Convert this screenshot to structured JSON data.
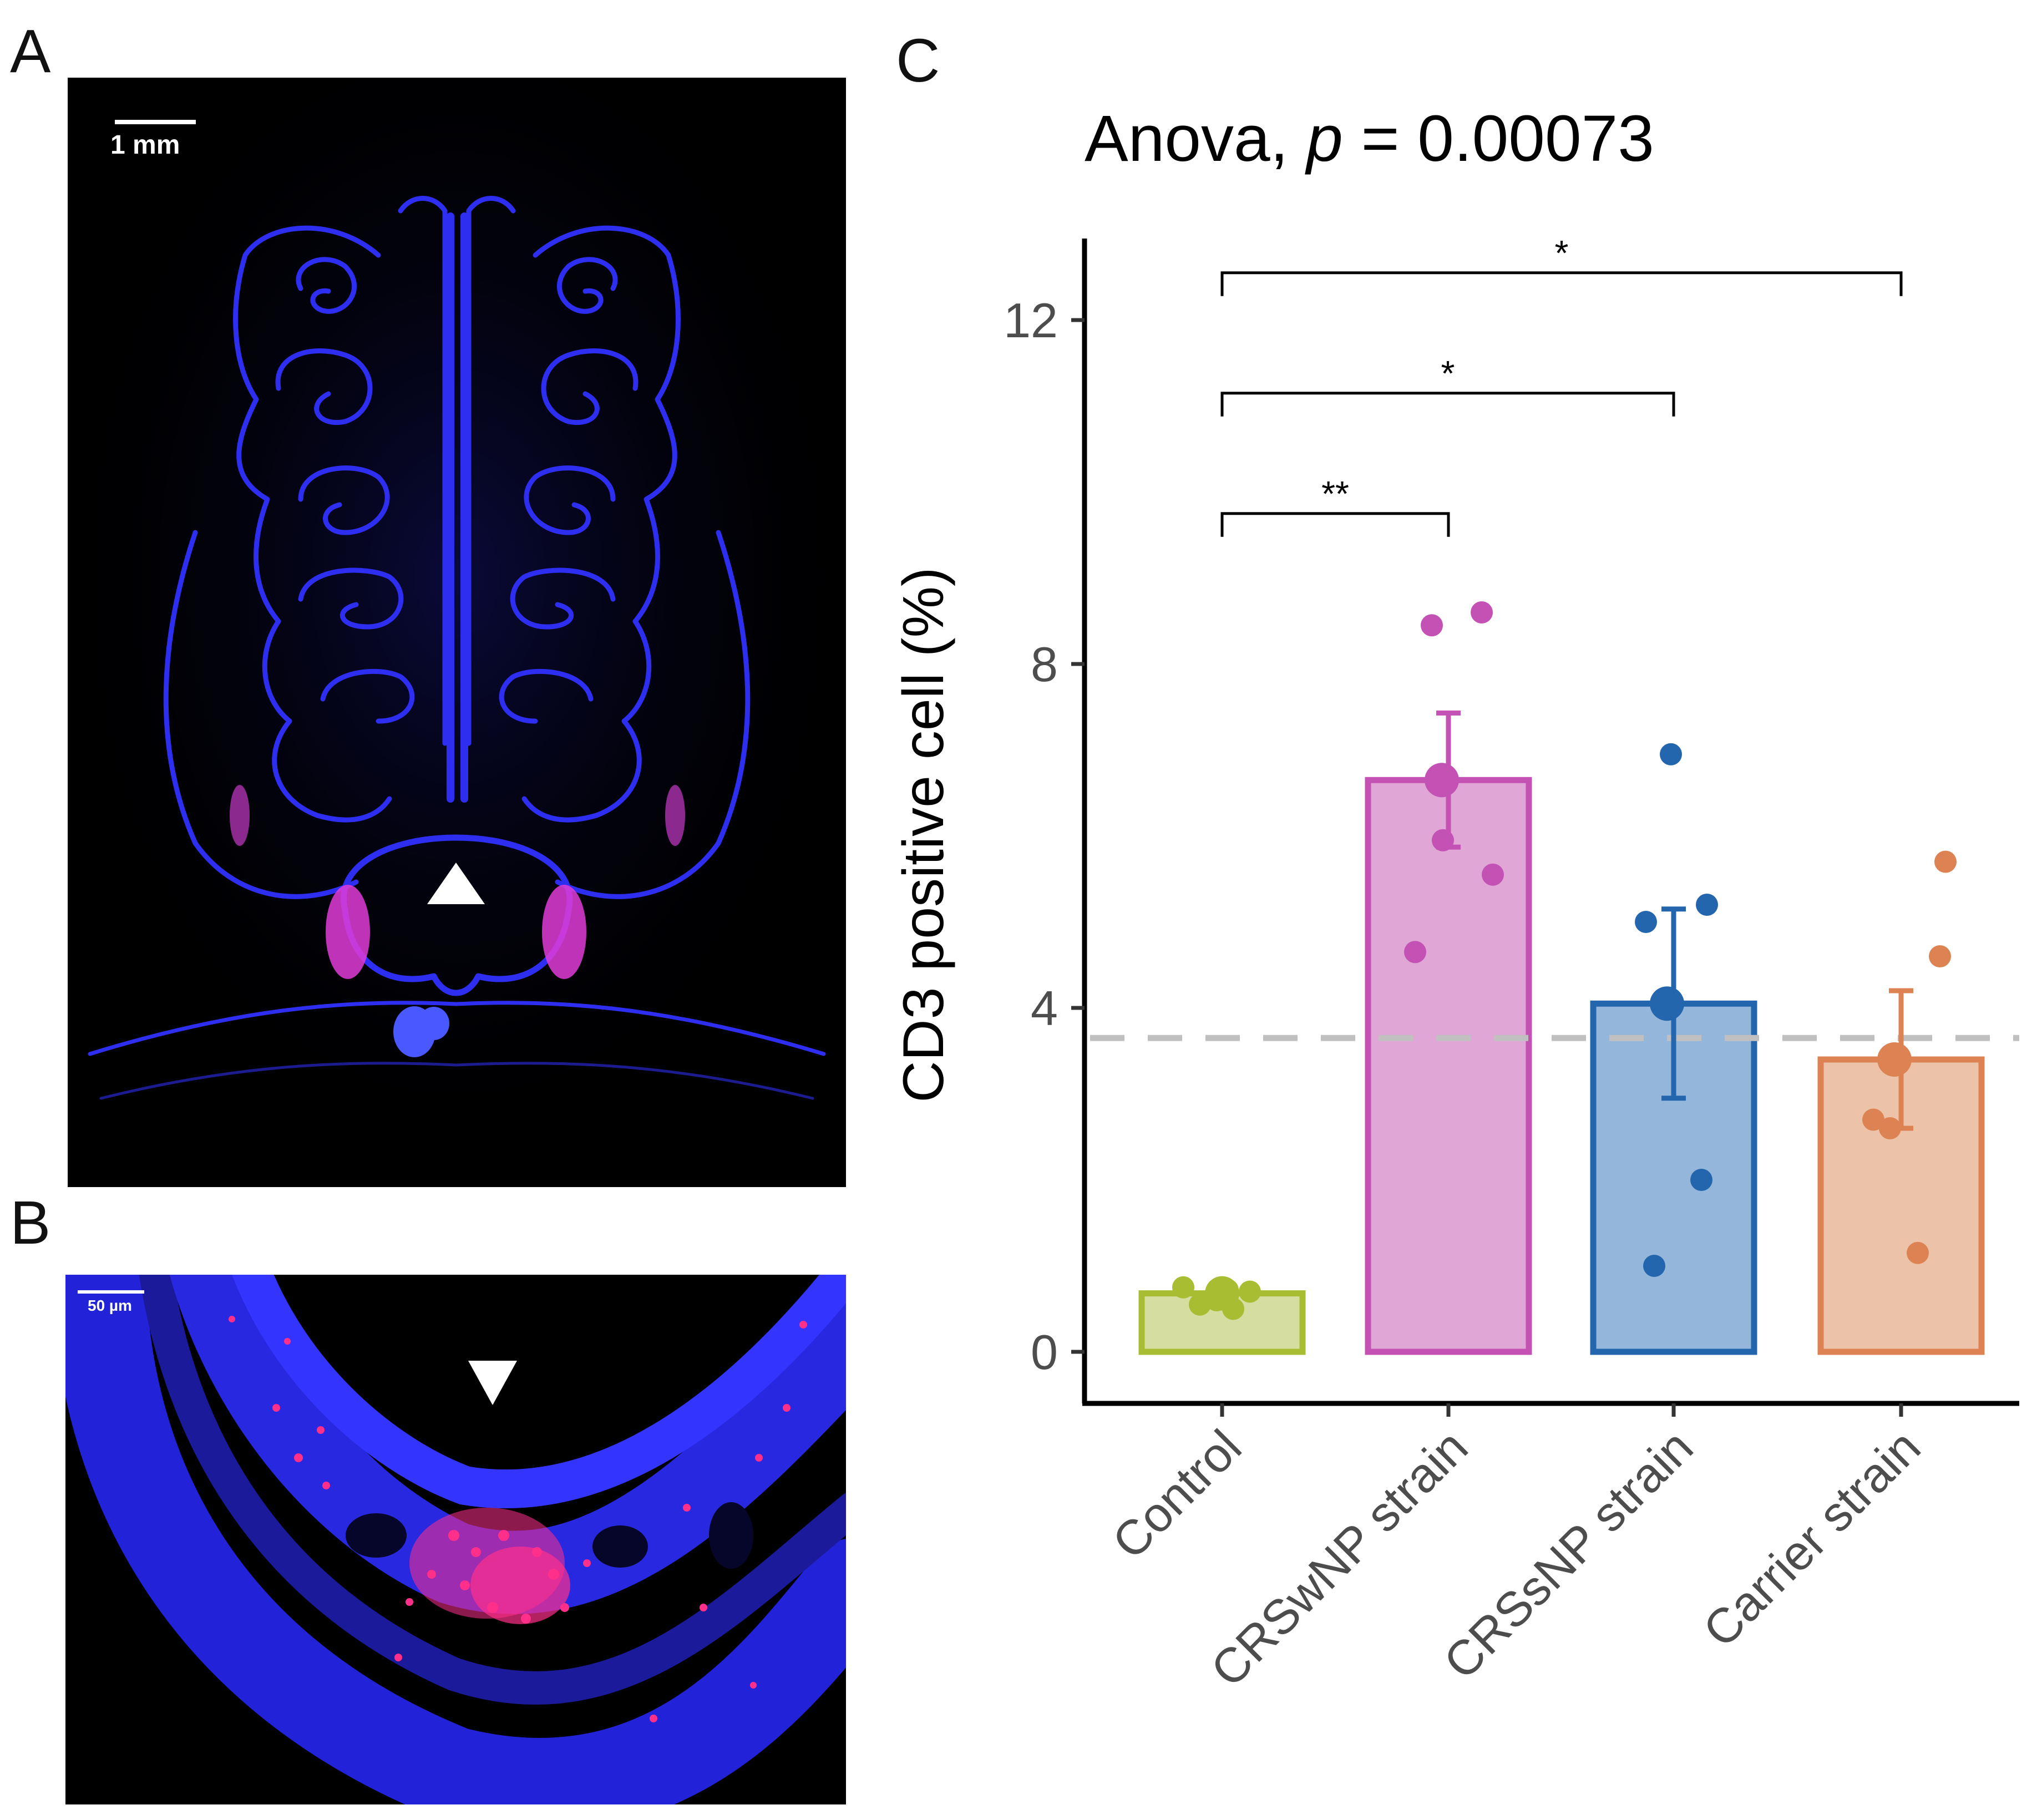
{
  "panels": {
    "a": {
      "letter": "A",
      "scale_label": "1 mm",
      "arrow": "up-triangle"
    },
    "b": {
      "letter": "B",
      "scale_label": "50 µm",
      "arrow": "down-triangle"
    },
    "c": {
      "letter": "C"
    }
  },
  "chart_data": {
    "type": "bar",
    "title_prefix": "Anova, ",
    "title_p": "p",
    "title_suffix": " = 0.00073",
    "ylabel": "CD3 positive cell (%)",
    "xlabel": "",
    "ylim": [
      -0.5,
      13
    ],
    "yticks": [
      0,
      4,
      8,
      12
    ],
    "categories": [
      "Control",
      "CRSwNP strain",
      "CRSsNP strain",
      "Carrier strain"
    ],
    "values": [
      0.68,
      6.65,
      4.05,
      3.4
    ],
    "errors": [
      0.05,
      0.78,
      1.1,
      0.8
    ],
    "points": [
      [
        0.75,
        0.6,
        0.72,
        0.55,
        0.7,
        0.5
      ],
      [
        8.45,
        8.6,
        5.95,
        5.55,
        4.65
      ],
      [
        6.95,
        5.0,
        5.2,
        2.0,
        1.0
      ],
      [
        5.7,
        4.6,
        2.7,
        2.6,
        1.15
      ]
    ],
    "colors": {
      "fill": [
        "#d5dea0",
        "#e0a6d6",
        "#93b6da",
        "#ecc3a9"
      ],
      "stroke": [
        "#a9bd32",
        "#c451b4",
        "#2466ad",
        "#dc8253"
      ],
      "point": [
        "#a9bd32",
        "#c451b4",
        "#2466ad",
        "#dc8253"
      ]
    },
    "reference_line": {
      "value": 3.65,
      "style": "dashed",
      "color": "#c0c0c0"
    },
    "comparisons": [
      {
        "from": 0,
        "to": 1,
        "label": "**",
        "y": 9.75
      },
      {
        "from": 0,
        "to": 2,
        "label": "*",
        "y": 11.15
      },
      {
        "from": 0,
        "to": 3,
        "label": "*",
        "y": 12.55
      }
    ]
  }
}
